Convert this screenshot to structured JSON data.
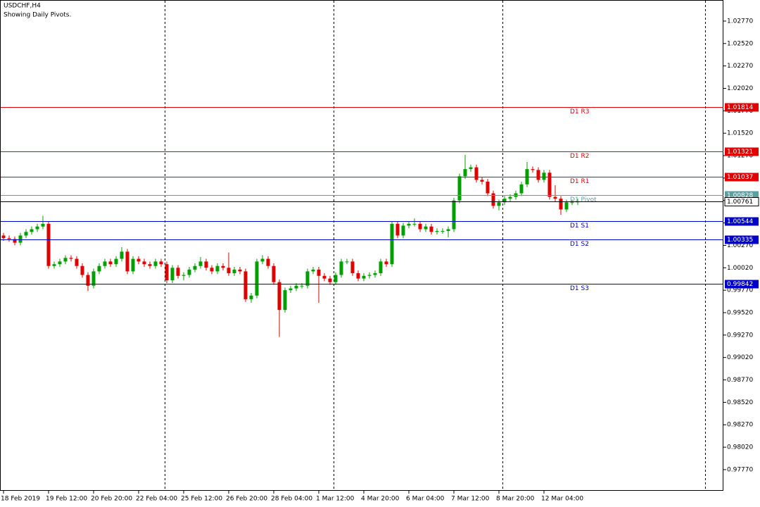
{
  "chart_data": {
    "type": "candlestick",
    "title": "USDCHF,H4",
    "subtitle": "Showing Daily Pivots.",
    "categories": [
      "18 Feb 2019",
      null,
      null,
      null,
      null,
      null,
      null,
      null,
      "19 Feb 12:00",
      null,
      null,
      null,
      null,
      null,
      null,
      null,
      "20 Feb 20:00",
      null,
      null,
      null,
      null,
      null,
      null,
      null,
      "22 Feb 04:00",
      null,
      null,
      null,
      null,
      null,
      null,
      null,
      "25 Feb 12:00",
      null,
      null,
      null,
      null,
      null,
      null,
      null,
      "26 Feb 20:00",
      null,
      null,
      null,
      null,
      null,
      null,
      null,
      "28 Feb 04:00",
      null,
      null,
      null,
      null,
      null,
      null,
      null,
      "1 Mar 12:00",
      null,
      null,
      null,
      null,
      null,
      null,
      null,
      "4 Mar 20:00",
      null,
      null,
      null,
      null,
      null,
      null,
      null,
      "6 Mar 04:00",
      null,
      null,
      null,
      null,
      null,
      null,
      null,
      "7 Mar 12:00",
      null,
      null,
      null,
      null,
      null,
      null,
      null,
      "8 Mar 20:00",
      null,
      null,
      null,
      null,
      null,
      null,
      null,
      "12 Mar 04:00",
      null,
      null,
      null,
      null,
      null,
      null
    ],
    "open": [
      1.0038,
      1.0035,
      1.0034,
      1.003,
      1.0038,
      1.0042,
      1.0045,
      1.0048,
      1.0051,
      1.0004,
      1.0006,
      1.0009,
      1.0013,
      1.0012,
      1.0004,
      0.9994,
      0.9982,
      0.9998,
      1.0004,
      1.0009,
      1.0006,
      1.0012,
      1.002,
      0.9998,
      1.0012,
      1.0009,
      1.0006,
      1.0004,
      1.0009,
      1.0006,
      0.9988,
      1.0002,
      0.9993,
      0.9994,
      1.0,
      1.0004,
      1.0009,
      1.0002,
      0.9998,
      1.0004,
      1.0002,
      0.9996,
      1.0,
      0.9998,
      0.9967,
      0.9971,
      1.0009,
      1.0012,
      1.0004,
      0.9986,
      0.9955,
      0.9977,
      0.9979,
      0.9982,
      0.9982,
      0.9998,
      1.0,
      0.9993,
      0.999,
      0.9986,
      0.9994,
      1.0009,
      1.0009,
      0.9996,
      0.999,
      0.9993,
      0.9994,
      0.9996,
      1.0009,
      1.0006,
      1.0051,
      1.0038,
      1.0049,
      1.0051,
      1.0051,
      1.0045,
      1.0048,
      1.0042,
      1.0043,
      1.0043,
      1.0045,
      1.0077,
      1.0104,
      1.0112,
      1.0114,
      1.01,
      1.0098,
      1.0085,
      1.0071,
      1.0075,
      1.0079,
      1.0081,
      1.0085,
      1.0095,
      1.0112,
      1.0111,
      1.01,
      1.0108,
      1.0081,
      1.0079,
      1.0067,
      1.0075,
      1.0075
    ],
    "high": [
      1.0041,
      1.0038,
      1.0037,
      1.0041,
      1.0045,
      1.0048,
      1.0051,
      1.006,
      1.0054,
      1.0009,
      1.0012,
      1.0016,
      1.0016,
      1.0015,
      1.0007,
      0.9997,
      1.0001,
      1.0007,
      1.0012,
      1.0012,
      1.0015,
      1.0025,
      1.0023,
      1.0015,
      1.0015,
      1.0012,
      1.0009,
      1.0012,
      1.0012,
      1.0009,
      1.0005,
      1.0005,
      0.9997,
      1.0003,
      1.0007,
      1.0014,
      1.0012,
      1.0005,
      1.0007,
      1.0007,
      1.0019,
      1.0003,
      1.0003,
      1.0001,
      0.9974,
      1.0012,
      1.0016,
      1.0015,
      1.0007,
      0.9989,
      0.998,
      0.9982,
      0.9985,
      0.9985,
      1.0001,
      1.0003,
      1.0003,
      0.9996,
      0.9993,
      0.9997,
      1.0012,
      1.0012,
      1.0012,
      0.9999,
      0.9996,
      0.9997,
      0.9999,
      1.0012,
      1.0012,
      1.0054,
      1.0054,
      1.0052,
      1.0054,
      1.0057,
      1.0054,
      1.0051,
      1.0051,
      1.0046,
      1.0046,
      1.0048,
      1.008,
      1.0107,
      1.0128,
      1.0117,
      1.0117,
      1.0103,
      1.0101,
      1.0088,
      1.0078,
      1.0082,
      1.0084,
      1.0088,
      1.0098,
      1.012,
      1.0115,
      1.0114,
      1.0111,
      1.0111,
      1.0094,
      1.0082,
      1.0078,
      1.0078,
      1.0079
    ],
    "low": [
      1.0032,
      1.0031,
      1.0027,
      1.0027,
      1.0035,
      1.0039,
      1.0042,
      1.0045,
      1.0001,
      1.0001,
      1.0003,
      1.0006,
      1.0009,
      1.0001,
      0.9991,
      0.9976,
      0.9979,
      0.9995,
      1.0001,
      1.0003,
      1.0003,
      1.0009,
      0.9995,
      0.9995,
      1.0006,
      1.0003,
      1.0001,
      1.0001,
      1.0003,
      0.9985,
      0.9985,
      0.999,
      0.9988,
      0.9991,
      0.9997,
      1.0001,
      0.9999,
      0.9995,
      0.9995,
      0.9999,
      0.9993,
      0.9993,
      0.9995,
      0.9964,
      0.9963,
      0.9968,
      1.0006,
      1.0001,
      0.9983,
      0.9925,
      0.9952,
      0.9974,
      0.9976,
      0.9979,
      0.9979,
      0.9995,
      0.9963,
      0.9987,
      0.9983,
      0.9983,
      0.9991,
      1.0006,
      0.9993,
      0.9987,
      0.9987,
      0.999,
      0.9991,
      0.9993,
      1.0003,
      1.0003,
      1.0035,
      1.0035,
      1.0046,
      1.0048,
      1.0042,
      1.0042,
      1.0039,
      1.0039,
      1.004,
      1.0036,
      1.0042,
      1.0074,
      1.0101,
      1.0109,
      1.0097,
      1.0095,
      1.0082,
      1.0068,
      1.0066,
      1.0072,
      1.0076,
      1.0078,
      1.0082,
      1.0092,
      1.0108,
      1.0097,
      1.0097,
      1.0078,
      1.0076,
      1.0061,
      1.0064,
      1.0072,
      1.0072
    ],
    "close": [
      1.0035,
      1.0034,
      1.003,
      1.0038,
      1.0042,
      1.0045,
      1.0048,
      1.0051,
      1.0004,
      1.0006,
      1.0009,
      1.0013,
      1.0012,
      1.0004,
      0.9994,
      0.9982,
      0.9998,
      1.0004,
      1.0009,
      1.0006,
      1.0012,
      1.002,
      0.9998,
      1.0012,
      1.0009,
      1.0006,
      1.0004,
      1.0009,
      1.0006,
      0.9988,
      1.0002,
      0.9993,
      0.9994,
      1.0,
      1.0004,
      1.0009,
      1.0002,
      0.9998,
      1.0004,
      1.0002,
      0.9996,
      1.0,
      0.9998,
      0.9967,
      0.9971,
      1.0009,
      1.0012,
      1.0004,
      0.9986,
      0.9955,
      0.9977,
      0.9979,
      0.9982,
      0.9982,
      0.9998,
      1.0,
      0.9993,
      0.999,
      0.9986,
      0.9994,
      1.0009,
      1.0009,
      0.9996,
      0.999,
      0.9993,
      0.9994,
      0.9996,
      1.0009,
      1.0006,
      1.0051,
      1.0038,
      1.0049,
      1.0051,
      1.0051,
      1.0045,
      1.0048,
      1.0042,
      1.0043,
      1.0043,
      1.0045,
      1.0077,
      1.0104,
      1.0112,
      1.0114,
      1.01,
      1.0098,
      1.0085,
      1.0071,
      1.0075,
      1.0079,
      1.0081,
      1.0085,
      1.0095,
      1.0112,
      1.0111,
      1.01,
      1.0108,
      1.0081,
      1.0079,
      1.0067,
      1.0075,
      1.0075,
      1.00761
    ],
    "up_color": "#00a000",
    "down_color": "#e00000",
    "ylim": [
      0.97534,
      1.03005
    ],
    "yticks": [
      {
        "value": 1.0277,
        "label": "1.02770"
      },
      {
        "value": 1.0252,
        "label": "1.02520"
      },
      {
        "value": 1.0227,
        "label": "1.02270"
      },
      {
        "value": 1.0202,
        "label": "1.02020"
      },
      {
        "value": 1.0177,
        "label": "1.01770"
      },
      {
        "value": 1.0152,
        "label": "1.01520"
      },
      {
        "value": 1.0127,
        "label": "1.01270"
      },
      {
        "value": 1.0102,
        "label": "1.01020"
      },
      {
        "value": 1.0077,
        "label": "1.00770"
      },
      {
        "value": 1.0052,
        "label": "1.00520"
      },
      {
        "value": 1.0027,
        "label": "1.00270"
      },
      {
        "value": 1.0002,
        "label": "1.00020"
      },
      {
        "value": 0.9977,
        "label": "0.99770"
      },
      {
        "value": 0.9952,
        "label": "0.99520"
      },
      {
        "value": 0.9927,
        "label": "0.99270"
      },
      {
        "value": 0.9902,
        "label": "0.99020"
      },
      {
        "value": 0.9877,
        "label": "0.98770"
      },
      {
        "value": 0.9852,
        "label": "0.98520"
      },
      {
        "value": 0.9827,
        "label": "0.98270"
      },
      {
        "value": 0.9802,
        "label": "0.98020"
      },
      {
        "value": 0.9777,
        "label": "0.97770"
      }
    ],
    "levels": [
      {
        "name": "D1 R3",
        "value": 1.01814,
        "color": "#e00000"
      },
      {
        "name": "D1 R2",
        "value": 1.01321,
        "color": "#e00000"
      },
      {
        "name": "D1 R1",
        "value": 1.01037,
        "color": "#e00000"
      },
      {
        "name": "D1 Pivot",
        "value": 1.00828,
        "color": "#5f9ea0"
      },
      {
        "name": "D1 S1",
        "value": 1.00544,
        "color": "#0000cd"
      },
      {
        "name": "D1 S2",
        "value": 1.00335,
        "color": "#0000cd"
      },
      {
        "name": "D1 S3",
        "value": 0.99842,
        "color": "#0000cd"
      }
    ],
    "current_price": 1.00761,
    "current_color": "#000000"
  }
}
